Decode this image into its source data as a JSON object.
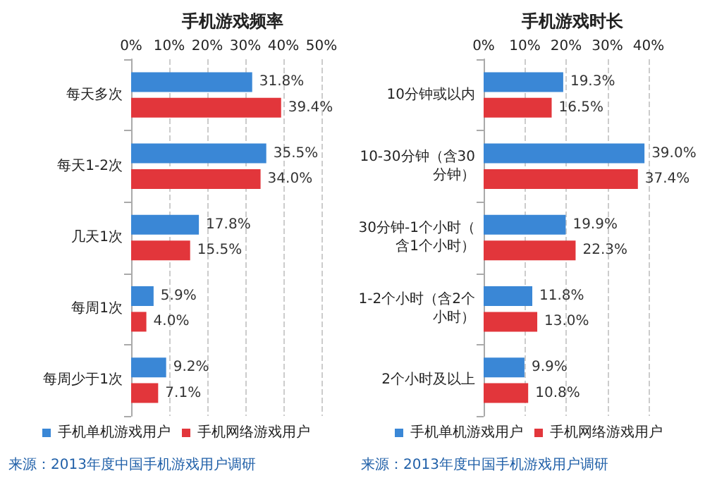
{
  "chart_data": [
    {
      "type": "bar",
      "orientation": "horizontal",
      "title": "手机游戏频率",
      "categories": [
        "每天多次",
        "每天1-2次",
        "几天1次",
        "每周1次",
        "每周少于1次"
      ],
      "series": [
        {
          "name": "手机单机游戏用户",
          "color": "#3a87d6",
          "values": [
            31.8,
            35.5,
            17.8,
            5.9,
            9.2
          ],
          "value_labels": [
            "31.8%",
            "35.5%",
            "17.8%",
            "5.9%",
            "9.2%"
          ]
        },
        {
          "name": "手机网络游戏用户",
          "color": "#e2363b",
          "values": [
            39.4,
            34.0,
            15.5,
            4.0,
            7.1
          ],
          "value_labels": [
            "39.4%",
            "34.0%",
            "15.5%",
            "4.0%",
            "7.1%"
          ]
        }
      ],
      "xlim": [
        0,
        50
      ],
      "xticks": [
        {
          "value": 0,
          "label": "0%"
        },
        {
          "value": 10,
          "label": "10%"
        },
        {
          "value": 20,
          "label": "20%"
        },
        {
          "value": 30,
          "label": "30%"
        },
        {
          "value": 40,
          "label": "40%"
        },
        {
          "value": 50,
          "label": "50%"
        }
      ],
      "grid": "x",
      "legend": "bottom",
      "annotations": [
        "来源：2013年度中国手机游戏用户调研"
      ]
    },
    {
      "type": "bar",
      "orientation": "horizontal",
      "title": "手机游戏时长",
      "categories": [
        "10分钟或以内",
        "10-30分钟（含30分钟）",
        "30分钟-1个小时（含1个小时）",
        "1-2个小时（含2个小时）",
        "2个小时及以上"
      ],
      "series": [
        {
          "name": "手机单机游戏用户",
          "color": "#3a87d6",
          "values": [
            19.3,
            39.0,
            19.9,
            11.8,
            9.9
          ],
          "value_labels": [
            "19.3%",
            "39.0%",
            "19.9%",
            "11.8%",
            "9.9%"
          ]
        },
        {
          "name": "手机网络游戏用户",
          "color": "#e2363b",
          "values": [
            16.5,
            37.4,
            22.3,
            13.0,
            10.8
          ],
          "value_labels": [
            "16.5%",
            "37.4%",
            "22.3%",
            "13.0%",
            "10.8%"
          ]
        }
      ],
      "xlim": [
        0,
        40
      ],
      "xticks": [
        {
          "value": 0,
          "label": "0%"
        },
        {
          "value": 10,
          "label": "10%"
        },
        {
          "value": 20,
          "label": "20%"
        },
        {
          "value": 30,
          "label": "30%"
        },
        {
          "value": 40,
          "label": "40%"
        }
      ],
      "grid": "x",
      "legend": "bottom",
      "annotations": [
        "来源：2013年度中国手机游戏用户调研"
      ]
    }
  ]
}
